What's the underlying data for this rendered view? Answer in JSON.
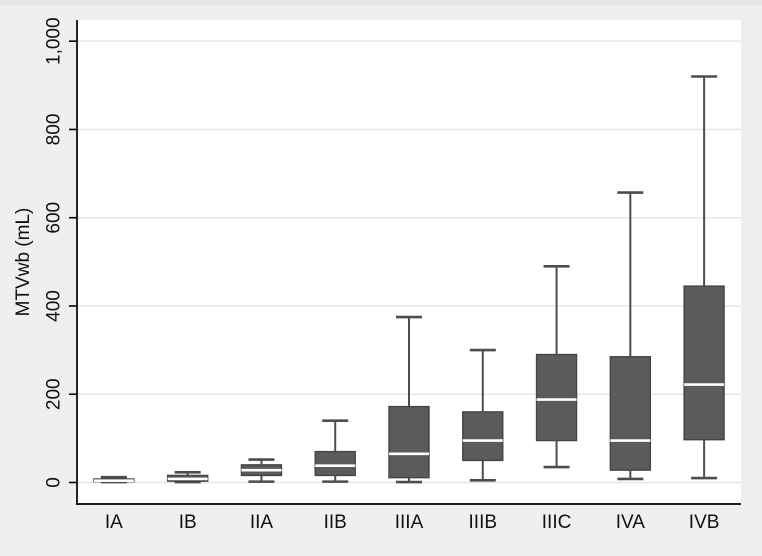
{
  "figure": {
    "background": "#f0efee",
    "plot_background": "#ffffff"
  },
  "colors": {
    "box_fill": "#5b5b5b",
    "box_border": "#454545",
    "median_line": "#ffffff",
    "whisker": "#4d4d4d",
    "gridline": "#e5e5e4",
    "axis_line": "#000000",
    "text": "#111111",
    "canvas_bg": "#f0efee",
    "plot_bg": "#ffffff"
  },
  "chart_data": {
    "type": "box",
    "title": "",
    "xlabel": "",
    "ylabel": "MTVwb (mL)",
    "ylim": [
      0,
      1000
    ],
    "grid": "horizontal-light",
    "legend": "none",
    "yticks": [
      {
        "value": 0,
        "label": "0"
      },
      {
        "value": 200,
        "label": "200"
      },
      {
        "value": 400,
        "label": "400"
      },
      {
        "value": 600,
        "label": "600"
      },
      {
        "value": 800,
        "label": "800"
      },
      {
        "value": 1000,
        "label": "1,000"
      }
    ],
    "categories": [
      "IA",
      "IB",
      "IIA",
      "IIB",
      "IIIA",
      "IIIB",
      "IIIC",
      "IVA",
      "IVB"
    ],
    "series": [
      {
        "name": "MTVwb",
        "stats": [
          {
            "category": "IA",
            "min": 1,
            "q1": 2,
            "median": 4,
            "q3": 8,
            "max": 12
          },
          {
            "category": "IB",
            "min": 1,
            "q1": 3,
            "median": 8,
            "q3": 16,
            "max": 23
          },
          {
            "category": "IIA",
            "min": 2,
            "q1": 16,
            "median": 28,
            "q3": 40,
            "max": 52
          },
          {
            "category": "IIB",
            "min": 2,
            "q1": 16,
            "median": 38,
            "q3": 70,
            "max": 140
          },
          {
            "category": "IIIA",
            "min": 1,
            "q1": 11,
            "median": 65,
            "q3": 172,
            "max": 375
          },
          {
            "category": "IIIB",
            "min": 5,
            "q1": 50,
            "median": 95,
            "q3": 160,
            "max": 300
          },
          {
            "category": "IIIC",
            "min": 35,
            "q1": 95,
            "median": 188,
            "q3": 290,
            "max": 490
          },
          {
            "category": "IVA",
            "min": 8,
            "q1": 28,
            "median": 95,
            "q3": 285,
            "max": 657
          },
          {
            "category": "IVB",
            "min": 10,
            "q1": 97,
            "median": 222,
            "q3": 445,
            "max": 920
          }
        ]
      }
    ]
  }
}
